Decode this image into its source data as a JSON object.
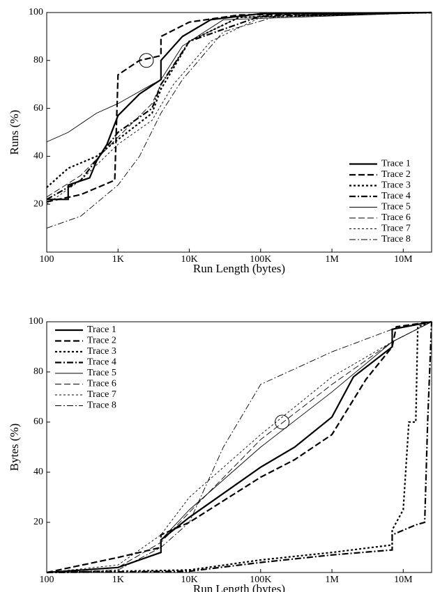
{
  "chart_data": [
    {
      "type": "line",
      "x_label": "Run Length (bytes)",
      "y_label": "Runs (%)",
      "xscale": "log",
      "xlim": [
        100,
        25000000
      ],
      "xticks": [
        100,
        {
          "value": 1000,
          "label": "1K"
        },
        {
          "value": 10000,
          "label": "10K"
        },
        {
          "value": 100000,
          "label": "100K"
        },
        {
          "value": 1000000,
          "label": "1M"
        },
        {
          "value": 10000000,
          "label": "10M"
        }
      ],
      "ylim": [
        0,
        100
      ],
      "yticks": [
        20,
        40,
        60,
        80,
        100
      ],
      "legend": "lower right",
      "circle_marker": {
        "x": 2500,
        "y": 80
      },
      "series": [
        {
          "name": "Trace 1",
          "color": "#000000",
          "line_style": "solid",
          "line_width": "thick",
          "x": [
            100,
            200,
            200,
            400,
            500,
            700,
            1000,
            2000,
            4000,
            4000,
            8000,
            20000,
            100000,
            25000000
          ],
          "values": [
            22,
            22,
            28,
            31,
            38,
            45,
            57,
            66,
            72,
            80,
            90,
            97,
            99.5,
            100
          ]
        },
        {
          "name": "Trace 2",
          "color": "#000000",
          "line_style": "dashed",
          "line_width": "thick",
          "x": [
            100,
            300,
            900,
            1000,
            2000,
            4000,
            4000,
            10000,
            50000,
            25000000
          ],
          "values": [
            21,
            24,
            30,
            74,
            80,
            82,
            90,
            96,
            99,
            100
          ]
        },
        {
          "name": "Trace 3",
          "color": "#000000",
          "line_style": "dotted",
          "line_width": "thick",
          "x": [
            100,
            200,
            500,
            1000,
            3000,
            4000,
            10000,
            50000,
            25000000
          ],
          "values": [
            27,
            35,
            40,
            47,
            58,
            68,
            88,
            98,
            100
          ]
        },
        {
          "name": "Trace 4",
          "color": "#000000",
          "line_style": "dashdot",
          "line_width": "thick",
          "x": [
            100,
            300,
            1000,
            3000,
            4000,
            10000,
            100000,
            25000000
          ],
          "values": [
            22,
            30,
            50,
            60,
            70,
            88,
            98.5,
            100
          ]
        },
        {
          "name": "Trace 5",
          "color": "#000000",
          "line_style": "solid",
          "line_width": "thin",
          "x": [
            100,
            200,
            500,
            1000,
            3000,
            4000,
            8000,
            30000,
            25000000
          ],
          "values": [
            46,
            50,
            58,
            62,
            70,
            72,
            86,
            97,
            100
          ]
        },
        {
          "name": "Trace 6",
          "color": "#000000",
          "line_style": "dashed",
          "line_width": "thin",
          "x": [
            100,
            300,
            1000,
            3000,
            4000,
            10000,
            50000,
            25000000
          ],
          "values": [
            23,
            32,
            48,
            62,
            70,
            88,
            98,
            100
          ]
        },
        {
          "name": "Trace 7",
          "color": "#000000",
          "line_style": "dotted",
          "line_width": "thin",
          "x": [
            100,
            300,
            1000,
            3000,
            6000,
            20000,
            100000,
            25000000
          ],
          "values": [
            20,
            30,
            45,
            55,
            70,
            88,
            98,
            100
          ]
        },
        {
          "name": "Trace 8",
          "color": "#000000",
          "line_style": "dashdot",
          "line_width": "thin",
          "x": [
            100,
            300,
            1000,
            2000,
            4000,
            8000,
            30000,
            200000,
            25000000
          ],
          "values": [
            10,
            15,
            28,
            40,
            58,
            72,
            92,
            99,
            100
          ]
        }
      ]
    },
    {
      "type": "line",
      "x_label": "Run Length (bytes)",
      "y_label": "Bytes (%)",
      "xscale": "log",
      "xlim": [
        100,
        25000000
      ],
      "xticks": [
        100,
        {
          "value": 1000,
          "label": "1K"
        },
        {
          "value": 10000,
          "label": "10K"
        },
        {
          "value": 100000,
          "label": "100K"
        },
        {
          "value": 1000000,
          "label": "1M"
        },
        {
          "value": 10000000,
          "label": "10M"
        }
      ],
      "ylim": [
        0,
        100
      ],
      "yticks": [
        20,
        40,
        60,
        80,
        100
      ],
      "legend": "upper left",
      "circle_marker": {
        "x": 200000,
        "y": 60
      },
      "series": [
        {
          "name": "Trace 1",
          "color": "#000000",
          "line_style": "solid",
          "line_width": "thick",
          "x": [
            100,
            1000,
            4000,
            4000,
            10000,
            100000,
            300000,
            1000000,
            2000000,
            7000000,
            7000000,
            25000000
          ],
          "values": [
            0,
            2,
            8,
            13,
            22,
            42,
            50,
            62,
            78,
            90,
            97,
            100
          ]
        },
        {
          "name": "Trace 2",
          "color": "#000000",
          "line_style": "dashed",
          "line_width": "thick",
          "x": [
            100,
            1000,
            4000,
            4000,
            10000,
            100000,
            300000,
            1000000,
            3000000,
            7000000,
            8000000,
            25000000
          ],
          "values": [
            0,
            6,
            10,
            15,
            20,
            38,
            45,
            55,
            77,
            90,
            98,
            100
          ]
        },
        {
          "name": "Trace 3",
          "color": "#000000",
          "line_style": "dotted",
          "line_width": "thick",
          "x": [
            100,
            10000,
            100000,
            1000000,
            7000000,
            7000000,
            10000000,
            12000000,
            15000000,
            16000000,
            25000000
          ],
          "values": [
            0,
            1,
            5,
            8,
            11,
            17,
            25,
            60,
            60,
            98,
            100
          ]
        },
        {
          "name": "Trace 4",
          "color": "#000000",
          "line_style": "dashdot",
          "line_width": "thick",
          "x": [
            100,
            10000,
            100000,
            1000000,
            7000000,
            7000000,
            15000000,
            20000000,
            22000000,
            25000000
          ],
          "values": [
            0,
            0.5,
            4,
            7,
            9,
            15,
            19,
            20,
            60,
            100
          ]
        },
        {
          "name": "Trace 5",
          "color": "#000000",
          "line_style": "solid",
          "line_width": "thin",
          "x": [
            100,
            1000,
            4000,
            4000,
            10000,
            100000,
            1000000,
            7000000,
            25000000
          ],
          "values": [
            0,
            2,
            8,
            13,
            25,
            50,
            72,
            92,
            100
          ]
        },
        {
          "name": "Trace 6",
          "color": "#000000",
          "line_style": "dashed",
          "line_width": "thin",
          "x": [
            100,
            1000,
            4000,
            10000,
            100000,
            1000000,
            7000000,
            25000000
          ],
          "values": [
            0,
            2,
            12,
            24,
            53,
            75,
            92,
            100
          ]
        },
        {
          "name": "Trace 7",
          "color": "#000000",
          "line_style": "dotted",
          "line_width": "thin",
          "x": [
            100,
            1000,
            4000,
            10000,
            100000,
            1000000,
            7000000,
            25000000
          ],
          "values": [
            0,
            3,
            15,
            30,
            55,
            78,
            92,
            100
          ]
        },
        {
          "name": "Trace 8",
          "color": "#000000",
          "line_style": "dashdot",
          "line_width": "thin",
          "x": [
            100,
            1000,
            4000,
            10000,
            30000,
            100000,
            1000000,
            7000000,
            25000000
          ],
          "values": [
            0,
            1,
            10,
            20,
            50,
            75,
            88,
            97,
            100
          ]
        }
      ]
    }
  ]
}
